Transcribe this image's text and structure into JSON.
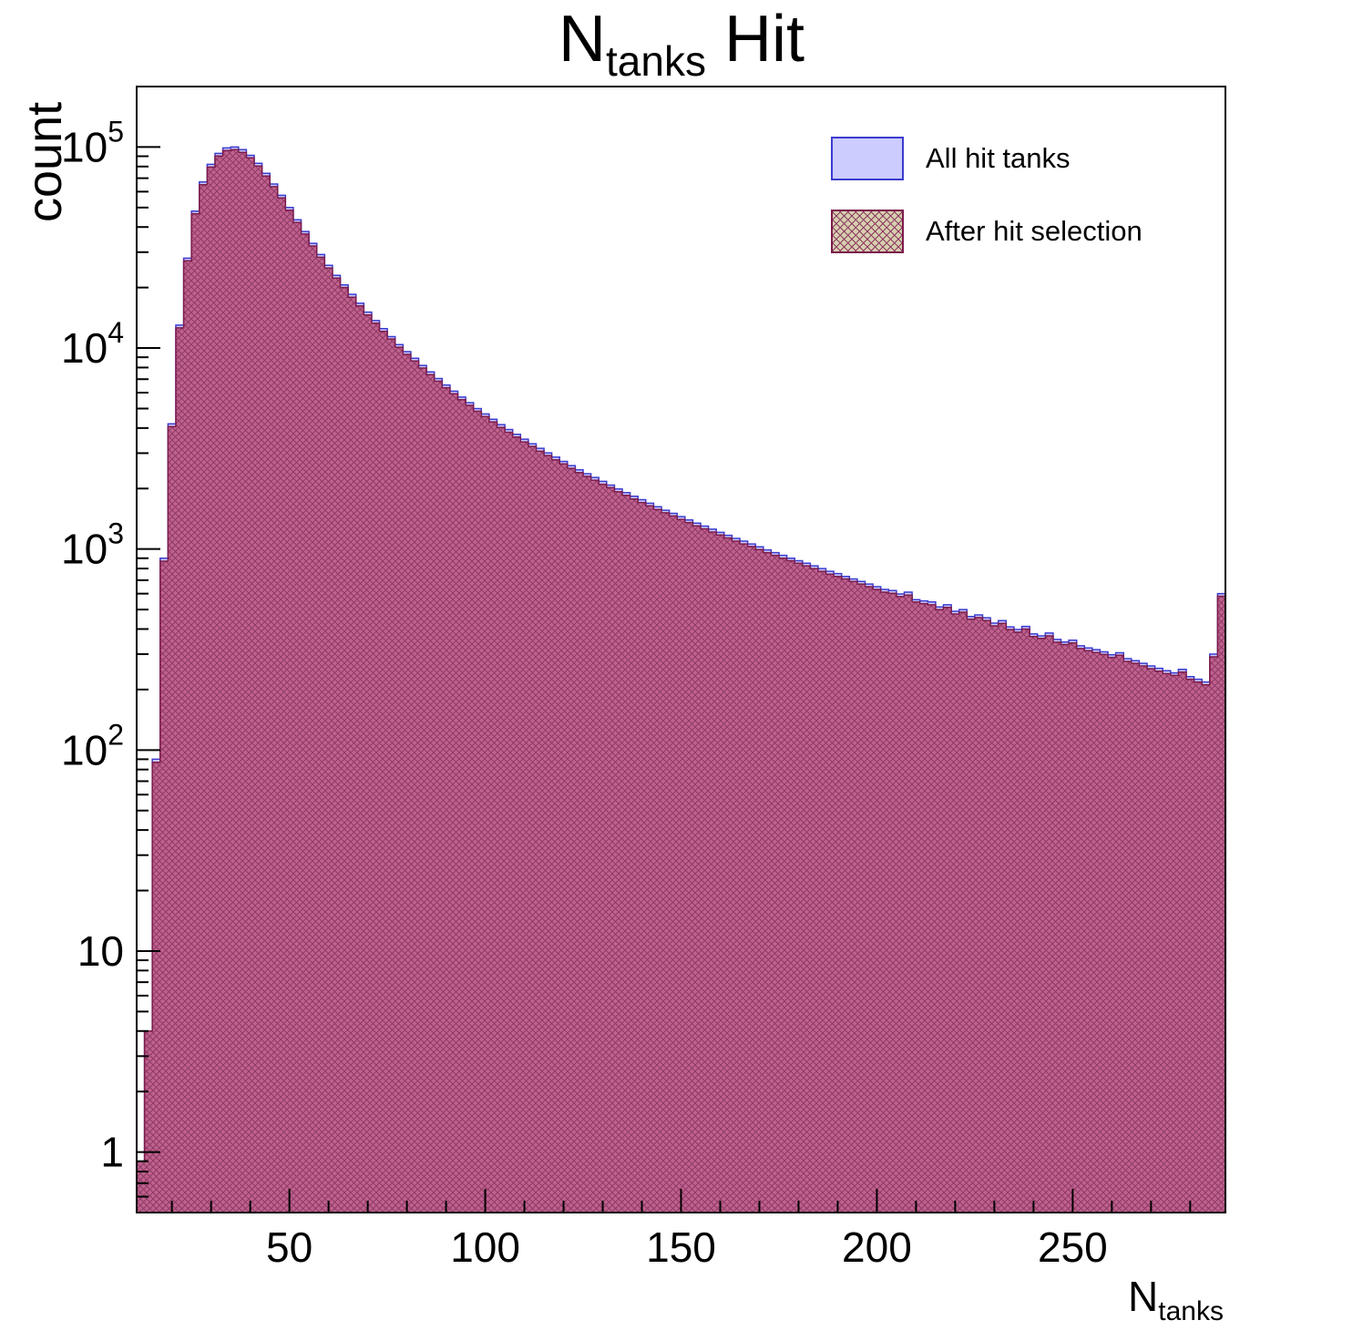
{
  "title": {
    "prefix": "N",
    "subscript": "tanks",
    "suffix": " Hit"
  },
  "axes": {
    "y_label": "count",
    "x_label_prefix": "N",
    "x_label_subscript": "tanks",
    "x_ticks": [
      {
        "label": "50",
        "value": 50
      },
      {
        "label": "100",
        "value": 100
      },
      {
        "label": "150",
        "value": 150
      },
      {
        "label": "200",
        "value": 200
      },
      {
        "label": "250",
        "value": 250
      }
    ],
    "y_ticks": [
      {
        "base": "1",
        "exp": "",
        "value": 1
      },
      {
        "base": "10",
        "exp": "",
        "value": 10
      },
      {
        "base": "10",
        "exp": "2",
        "value": 100
      },
      {
        "base": "10",
        "exp": "3",
        "value": 1000
      },
      {
        "base": "10",
        "exp": "4",
        "value": 10000
      },
      {
        "base": "10",
        "exp": "5",
        "value": 100000
      }
    ]
  },
  "legend": {
    "entries": [
      {
        "label": "All hit tanks",
        "swatch": "blue-fill"
      },
      {
        "label": "After hit selection",
        "swatch": "red-crosshatch"
      }
    ]
  },
  "colors": {
    "all_fill": "#ccccfe",
    "all_stroke": "#3b3bcf",
    "after_fill": "#c0618f",
    "after_hatch": "#8d3a63",
    "after_stroke": "#7c1b4b",
    "legend_after_base": "#d6cfae",
    "frame": "#000000"
  },
  "chart_data": {
    "type": "bar",
    "subtype": "step-histogram-overlay",
    "title": "N_tanks Hit",
    "xlabel": "N_tanks",
    "ylabel": "count",
    "yscale": "log",
    "xlim": [
      11,
      289
    ],
    "ylim": [
      0.5,
      200000
    ],
    "x_start": 11,
    "bin_width": 2,
    "series": [
      {
        "name": "All hit tanks",
        "values": [
          0.9,
          4,
          90,
          900,
          4200,
          13000,
          28000,
          48000,
          67000,
          82000,
          93000,
          99000,
          100000,
          97000,
          91000,
          83000,
          74000,
          65500,
          57500,
          50000,
          43500,
          38000,
          33200,
          29200,
          25800,
          23000,
          20600,
          18500,
          16700,
          15100,
          13700,
          12500,
          11400,
          10400,
          9600,
          8900,
          8200,
          7600,
          7050,
          6550,
          6100,
          5700,
          5350,
          5000,
          4700,
          4420,
          4160,
          3930,
          3720,
          3520,
          3340,
          3170,
          3010,
          2870,
          2730,
          2600,
          2480,
          2370,
          2270,
          2170,
          2080,
          1990,
          1910,
          1830,
          1760,
          1690,
          1625,
          1560,
          1505,
          1450,
          1395,
          1345,
          1300,
          1255,
          1210,
          1170,
          1130,
          1095,
          1060,
          1025,
          990,
          960,
          930,
          900,
          875,
          850,
          825,
          800,
          775,
          755,
          730,
          710,
          690,
          670,
          650,
          630,
          622,
          598,
          610,
          560,
          552,
          545,
          515,
          528,
          490,
          500,
          462,
          470,
          455,
          428,
          440,
          410,
          398,
          412,
          378,
          370,
          382,
          355,
          345,
          352,
          330,
          322,
          316,
          308,
          298,
          305,
          285,
          278,
          270,
          262,
          255,
          248,
          242,
          252,
          232,
          225,
          218,
          300,
          600
        ]
      },
      {
        "name": "After hit selection",
        "values": [
          0.9,
          4,
          87,
          870,
          4070,
          12600,
          27200,
          46600,
          65000,
          79500,
          90200,
          96000,
          97000,
          94100,
          88300,
          80500,
          71800,
          63500,
          55800,
          48500,
          42200,
          36900,
          32200,
          28300,
          25000,
          22300,
          20000,
          17900,
          16200,
          14600,
          13300,
          12100,
          11100,
          10100,
          9300,
          8630,
          7950,
          7370,
          6840,
          6350,
          5920,
          5530,
          5190,
          4850,
          4560,
          4290,
          4030,
          3810,
          3610,
          3410,
          3240,
          3070,
          2920,
          2780,
          2650,
          2520,
          2400,
          2300,
          2200,
          2100,
          2020,
          1930,
          1850,
          1775,
          1705,
          1640,
          1575,
          1515,
          1460,
          1405,
          1355,
          1305,
          1260,
          1215,
          1175,
          1135,
          1095,
          1060,
          1030,
          995,
          960,
          930,
          900,
          875,
          850,
          825,
          800,
          775,
          750,
          730,
          710,
          690,
          670,
          650,
          630,
          610,
          603,
          580,
          590,
          545,
          535,
          528,
          500,
          512,
          475,
          485,
          448,
          456,
          441,
          415,
          427,
          398,
          386,
          400,
          367,
          359,
          370,
          344,
          335,
          341,
          320,
          312,
          306,
          299,
          289,
          296,
          276,
          270,
          262,
          254,
          247,
          240,
          235,
          244,
          225,
          218,
          211,
          291,
          582
        ]
      }
    ]
  }
}
